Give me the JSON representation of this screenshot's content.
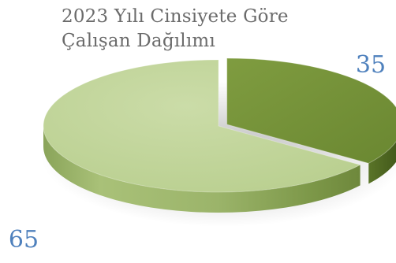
{
  "chart_data": {
    "type": "pie",
    "title": "2023 Yılı Cinsiyete Göre Çalışan Dağılımı",
    "title_lines": [
      "2023 Yılı Cinsiyete Göre",
      "Çalışan Dağılımı"
    ],
    "values": [
      35,
      65
    ],
    "data_labels": [
      "35",
      "65"
    ],
    "colors": [
      "#76943a",
      "#c3d69b"
    ],
    "label_colors": [
      "#4f81bd",
      "#4f81bd"
    ],
    "style": "3d-exploded",
    "legend": "none"
  }
}
